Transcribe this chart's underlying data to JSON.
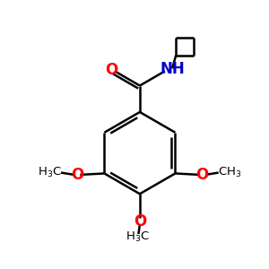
{
  "bg_color": "#ffffff",
  "bond_color": "#000000",
  "oxygen_color": "#ff0000",
  "nitrogen_color": "#0000cc",
  "carbon_color": "#000000",
  "line_width": 1.8,
  "figsize": [
    3.0,
    3.0
  ],
  "dpi": 100,
  "xlim": [
    0,
    10
  ],
  "ylim": [
    0,
    10
  ]
}
